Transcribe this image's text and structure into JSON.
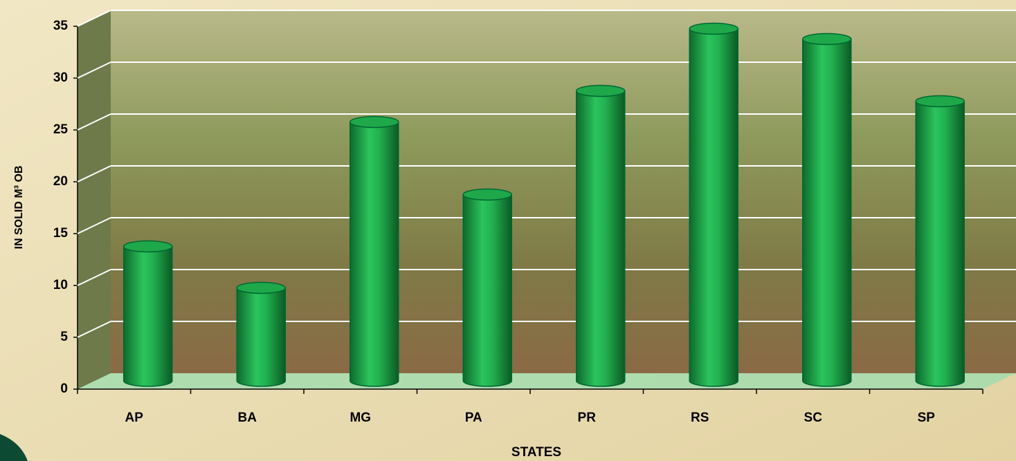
{
  "chart_data": {
    "type": "bar",
    "x_label": "STATES",
    "y_label": "IN SOLID M³ OB",
    "categories": [
      "AP",
      "BA",
      "MG",
      "PA",
      "PR",
      "RS",
      "SC",
      "SP"
    ],
    "values": [
      13,
      9,
      25,
      18,
      28,
      34,
      33,
      27
    ],
    "color": "#1fa84a",
    "ylim": [
      0,
      35
    ],
    "yticks": [
      0,
      5,
      10,
      15,
      20,
      25,
      30,
      35
    ],
    "grid": true
  }
}
